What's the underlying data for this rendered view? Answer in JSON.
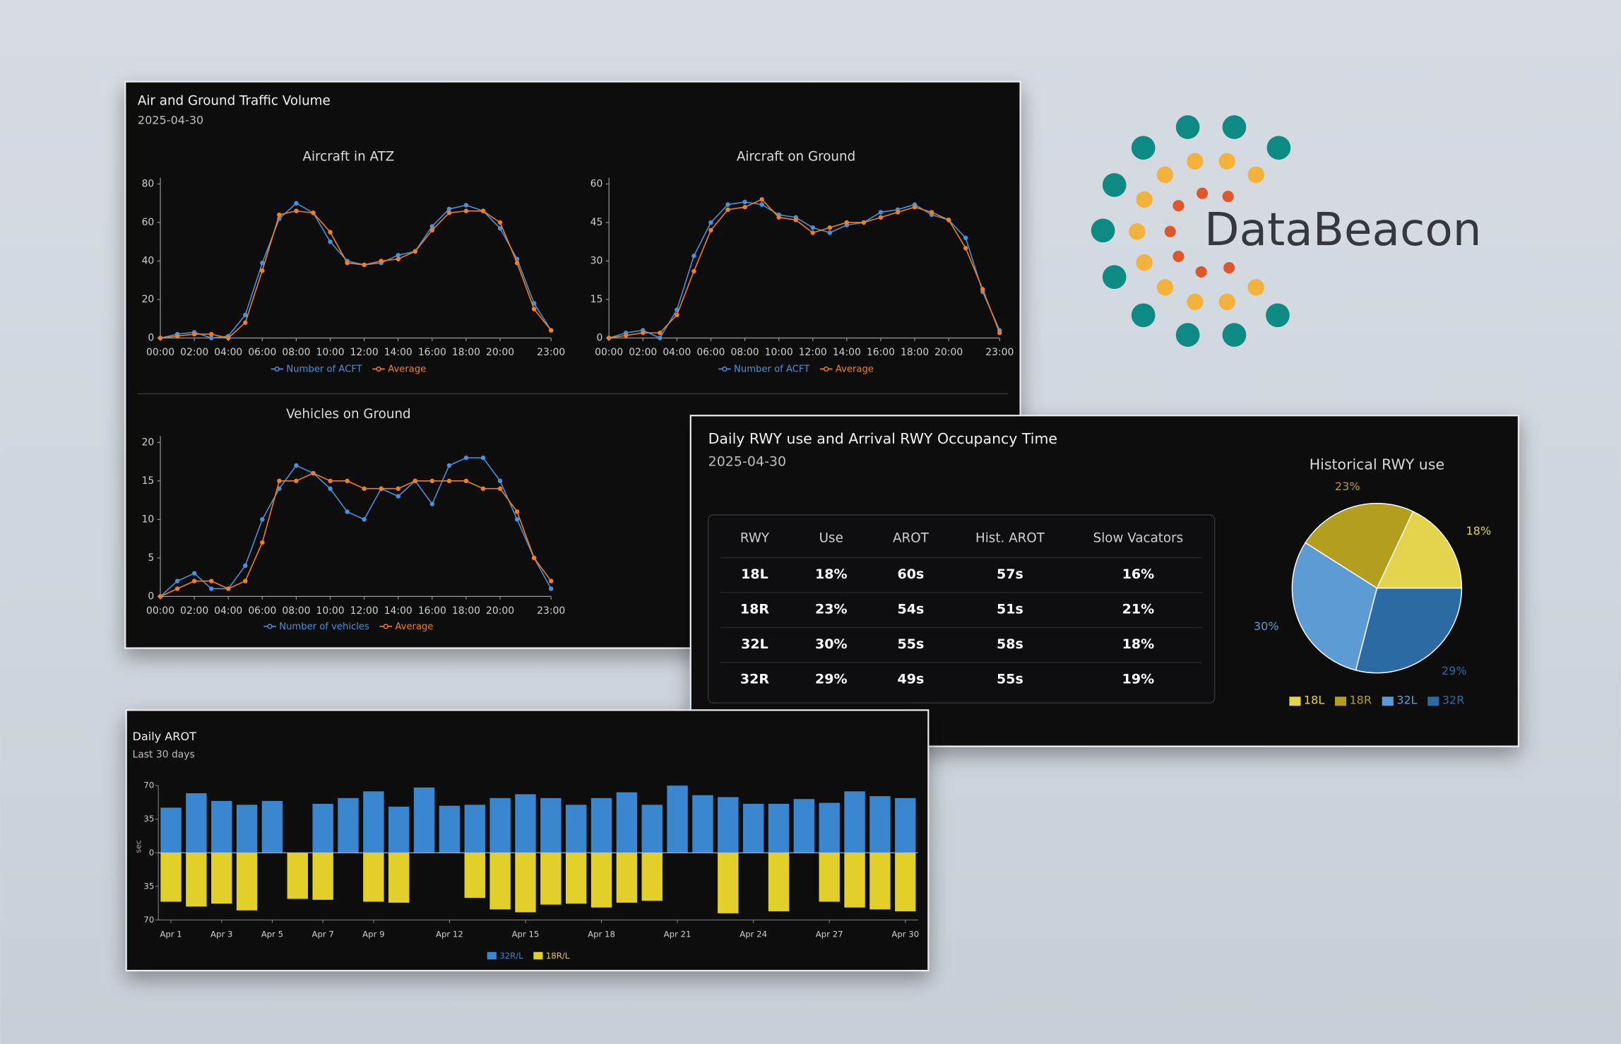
{
  "logo": {
    "text": "DataBeacon"
  },
  "panels": [
    {
      "title": "Air and Ground Traffic Volume",
      "subtitle": "2025-04-30"
    },
    {
      "title": "Daily RWY use and Arrival RWY Occupancy Time",
      "subtitle": "2025-04-30"
    }
  ],
  "table": {
    "columns": [
      "RWY",
      "Use",
      "AROT",
      "Hist. AROT",
      "Slow Vacators"
    ],
    "rows": [
      [
        "18L",
        "18%",
        "60s",
        "57s",
        "16%"
      ],
      [
        "18R",
        "23%",
        "54s",
        "51s",
        "21%"
      ],
      [
        "32L",
        "30%",
        "55s",
        "58s",
        "18%"
      ],
      [
        "32R",
        "29%",
        "49s",
        "55s",
        "19%"
      ]
    ]
  },
  "chart_data": [
    {
      "type": "line",
      "title": "Aircraft in ATZ",
      "categories": [
        "00:00",
        null,
        "02:00",
        null,
        "04:00",
        null,
        "06:00",
        null,
        "08:00",
        null,
        "10:00",
        null,
        "12:00",
        null,
        "14:00",
        null,
        "16:00",
        null,
        "18:00",
        null,
        "20:00",
        null,
        null,
        "23:00"
      ],
      "series": [
        {
          "name": "Number of ACFT",
          "color": "#4a90d9",
          "values": [
            0,
            2,
            3,
            0,
            1,
            12,
            39,
            62,
            70,
            65,
            50,
            40,
            38,
            39,
            43,
            45,
            58,
            67,
            69,
            66,
            57,
            41,
            18,
            4
          ]
        },
        {
          "name": "Average",
          "color": "#f07f20",
          "values": [
            0,
            1,
            2,
            2,
            0,
            8,
            35,
            64,
            66,
            65,
            55,
            39,
            38,
            40,
            41,
            45,
            56,
            65,
            66,
            66,
            60,
            39,
            15,
            4
          ]
        }
      ],
      "ylim": [
        0,
        80
      ],
      "yticks": [
        0,
        20,
        40,
        60,
        80
      ],
      "legend": "bottom"
    },
    {
      "type": "line",
      "title": "Aircraft on Ground",
      "categories": [
        "00:00",
        null,
        "02:00",
        null,
        "04:00",
        null,
        "06:00",
        null,
        "08:00",
        null,
        "10:00",
        null,
        "12:00",
        null,
        "14:00",
        null,
        "16:00",
        null,
        "18:00",
        null,
        "20:00",
        null,
        null,
        "23:00"
      ],
      "series": [
        {
          "name": "Number of ACFT",
          "color": "#4a90d9",
          "values": [
            0,
            2,
            3,
            0,
            11,
            32,
            45,
            52,
            53,
            52,
            48,
            47,
            43,
            41,
            44,
            45,
            49,
            50,
            52,
            48,
            46,
            39,
            18,
            3
          ]
        },
        {
          "name": "Average",
          "color": "#f07f20",
          "values": [
            0,
            1,
            2,
            2,
            9,
            26,
            42,
            50,
            51,
            54,
            47,
            46,
            41,
            43,
            45,
            45,
            47,
            49,
            51,
            49,
            46,
            35,
            19,
            2
          ]
        }
      ],
      "ylim": [
        0,
        60
      ],
      "yticks": [
        0,
        15,
        30,
        45,
        60
      ],
      "legend": "bottom"
    },
    {
      "type": "line",
      "title": "Vehicles on Ground",
      "categories": [
        "00:00",
        null,
        "02:00",
        null,
        "04:00",
        null,
        "06:00",
        null,
        "08:00",
        null,
        "10:00",
        null,
        "12:00",
        null,
        "14:00",
        null,
        "16:00",
        null,
        "18:00",
        null,
        "20:00",
        null,
        null,
        "23:00"
      ],
      "series": [
        {
          "name": "Number of vehicles",
          "color": "#4a90d9",
          "values": [
            0,
            2,
            3,
            1,
            1,
            4,
            10,
            14,
            17,
            16,
            14,
            11,
            10,
            14,
            13,
            15,
            12,
            17,
            18,
            18,
            15,
            10,
            5,
            1
          ]
        },
        {
          "name": "Average",
          "color": "#f07f20",
          "values": [
            0,
            1,
            2,
            2,
            1,
            2,
            7,
            15,
            15,
            16,
            15,
            15,
            14,
            14,
            14,
            15,
            15,
            15,
            15,
            14,
            14,
            11,
            5,
            2
          ]
        }
      ],
      "ylim": [
        0,
        20
      ],
      "yticks": [
        0,
        5,
        10,
        15,
        20
      ],
      "legend": "bottom"
    },
    {
      "type": "bar",
      "title": "Daily AROT",
      "subtitle": "Last 30 days",
      "y_label": "sec",
      "categories": [
        "Apr 1",
        null,
        "Apr 3",
        null,
        "Apr 5",
        null,
        "Apr 7",
        null,
        "Apr 9",
        null,
        null,
        "Apr 12",
        null,
        null,
        "Apr 15",
        null,
        null,
        "Apr 18",
        null,
        null,
        "Apr 21",
        null,
        null,
        "Apr 24",
        null,
        null,
        "Apr 27",
        null,
        null,
        "Apr 30"
      ],
      "series": [
        {
          "name": "32R/L",
          "color": "#3a87d0",
          "values": [
            47,
            62,
            54,
            50,
            54,
            null,
            51,
            57,
            64,
            48,
            68,
            49,
            50,
            57,
            61,
            57,
            50,
            57,
            63,
            50,
            70,
            60,
            58,
            51,
            51,
            56,
            52,
            64,
            59,
            57
          ]
        },
        {
          "name": "18R/L",
          "color": "#e2cf2a",
          "values": [
            -51,
            -56,
            -53,
            -60,
            null,
            -48,
            -49,
            null,
            -51,
            -52,
            null,
            null,
            -47,
            -59,
            -62,
            -54,
            -53,
            -57,
            -52,
            -50,
            null,
            null,
            -63,
            null,
            -61,
            null,
            -51,
            -57,
            -59,
            -61
          ]
        }
      ],
      "ylim": [
        -70,
        70
      ],
      "yticks": [
        {
          "value": -70,
          "label": "70"
        },
        {
          "value": -35,
          "label": "35"
        },
        0,
        35,
        70
      ],
      "legend": "bottom"
    },
    {
      "type": "pie",
      "title": "Historical RWY use",
      "categories": [
        "18L",
        "18R",
        "32L",
        "32R"
      ],
      "values": [
        18,
        23,
        30,
        29
      ],
      "value_labels": [
        "18%",
        "23%",
        "30%",
        "29%"
      ],
      "colors": [
        "#e4d34c",
        "#b49e1e",
        "#5c9bd4",
        "#2c6aa3"
      ],
      "legend": "bottom"
    }
  ]
}
